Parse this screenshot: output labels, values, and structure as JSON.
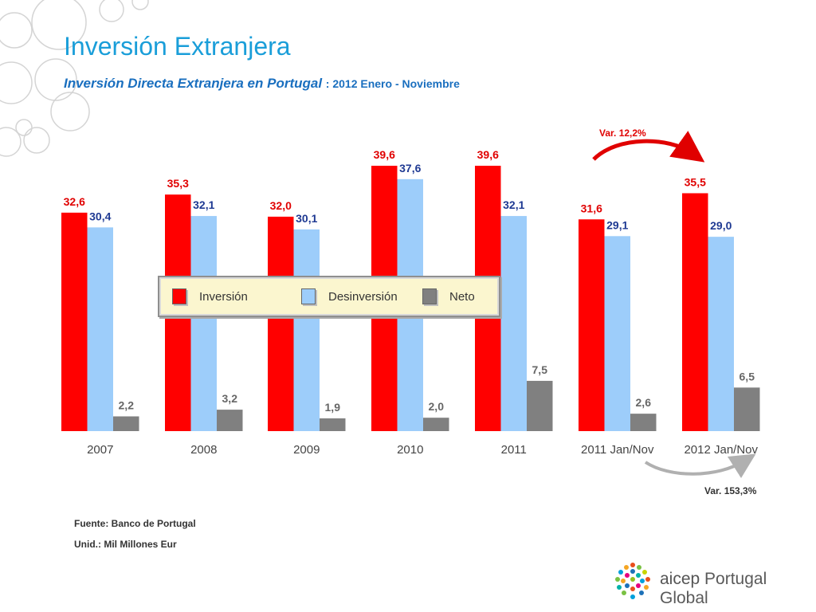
{
  "page": {
    "title": "Inversión Extranjera",
    "subtitle": "Inversión Directa Extranjera en Portugal",
    "subtitle_period": ": 2012 Enero - Noviembre",
    "source_note": "Fuente: Banco de Portugal",
    "unit_note": "Unid.: Mil Millones Eur",
    "var_top": "Var. 12,2%",
    "var_bottom": "Var. 153,3%",
    "logo_text_1": "aicep",
    "logo_text_2": " Portugal Global"
  },
  "legend": {
    "items": [
      {
        "label": "Inversión"
      },
      {
        "label": "Desinversión"
      },
      {
        "label": "Neto"
      }
    ]
  },
  "colors": {
    "inversion": "#ff0000",
    "desinversion": "#9dcdfa",
    "neto": "#808080",
    "label_inversion": "#e00000",
    "label_desinversion": "#1f3a93",
    "label_neto": "#666666",
    "title": "#1a9ed9"
  },
  "chart_data": {
    "type": "bar",
    "categories": [
      "2007",
      "2008",
      "2009",
      "2010",
      "2011",
      "2011 Jan/Nov",
      "2012 Jan/Nov"
    ],
    "series": [
      {
        "name": "Inversión",
        "values": [
          32.6,
          35.3,
          32.0,
          39.6,
          39.6,
          31.6,
          35.5
        ],
        "labels": [
          "32,6",
          "35,3",
          "32,0",
          "39,6",
          "39,6",
          "31,6",
          "35,5"
        ]
      },
      {
        "name": "Desinversión",
        "values": [
          30.4,
          32.1,
          30.1,
          37.6,
          32.1,
          29.1,
          29.0
        ],
        "labels": [
          "30,4",
          "32,1",
          "30,1",
          "37,6",
          "32,1",
          "29,1",
          "29,0"
        ]
      },
      {
        "name": "Neto",
        "values": [
          2.2,
          3.2,
          1.9,
          2.0,
          7.5,
          2.6,
          6.5
        ],
        "labels": [
          "2,2",
          "3,2",
          "1,9",
          "2,0",
          "7,5",
          "2,6",
          "6,5"
        ]
      }
    ],
    "ylim": [
      0,
      44
    ],
    "grid": false,
    "legend_position": "center"
  }
}
